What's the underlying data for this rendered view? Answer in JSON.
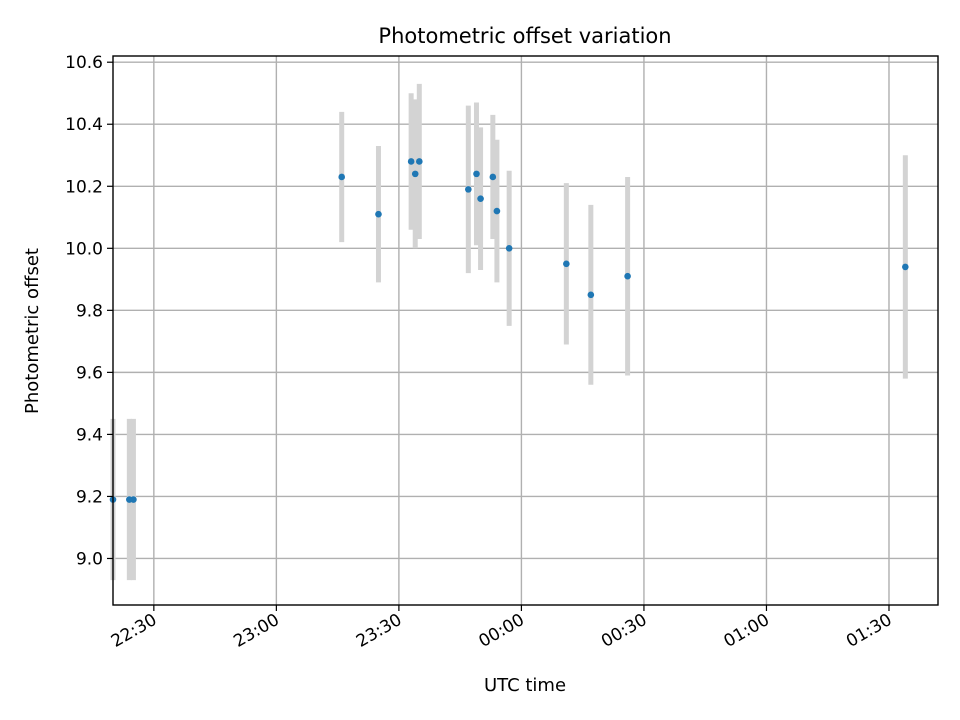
{
  "chart_data": {
    "type": "scatter",
    "title": "Photometric offset variation",
    "xlabel": "UTC time",
    "ylabel": "Photometric offset",
    "grid": true,
    "x_axis_type": "time",
    "xlim": [
      "22:20",
      "01:42"
    ],
    "ylim": [
      8.85,
      10.62
    ],
    "x_ticks": [
      "22:30",
      "23:00",
      "23:30",
      "00:00",
      "00:30",
      "01:00",
      "01:30"
    ],
    "y_ticks": [
      "9.0",
      "9.2",
      "9.4",
      "9.6",
      "9.8",
      "10.0",
      "10.2",
      "10.4",
      "10.6"
    ],
    "colors": {
      "marker": "#1f77b4",
      "error_bar": "#d3d3d3"
    },
    "series": [
      {
        "points": [
          {
            "x": "22:20",
            "y": 9.19,
            "err": 0.26
          },
          {
            "x": "22:24",
            "y": 9.19,
            "err": 0.26
          },
          {
            "x": "22:25",
            "y": 9.19,
            "err": 0.26
          },
          {
            "x": "23:16",
            "y": 10.23,
            "err": 0.21
          },
          {
            "x": "23:25",
            "y": 10.11,
            "err": 0.22
          },
          {
            "x": "23:33",
            "y": 10.28,
            "err": 0.22
          },
          {
            "x": "23:34",
            "y": 10.24,
            "err": 0.24
          },
          {
            "x": "23:35",
            "y": 10.28,
            "err": 0.25
          },
          {
            "x": "23:47",
            "y": 10.19,
            "err": 0.27
          },
          {
            "x": "23:49",
            "y": 10.24,
            "err": 0.23
          },
          {
            "x": "23:50",
            "y": 10.16,
            "err": 0.23
          },
          {
            "x": "23:53",
            "y": 10.23,
            "err": 0.2
          },
          {
            "x": "23:54",
            "y": 10.12,
            "err": 0.23
          },
          {
            "x": "23:57",
            "y": 10.0,
            "err": 0.25
          },
          {
            "x": "00:11",
            "y": 9.95,
            "err": 0.26
          },
          {
            "x": "00:17",
            "y": 9.85,
            "err": 0.29
          },
          {
            "x": "00:26",
            "y": 9.91,
            "err": 0.32
          },
          {
            "x": "01:34",
            "y": 9.94,
            "err": 0.36
          }
        ]
      }
    ]
  }
}
